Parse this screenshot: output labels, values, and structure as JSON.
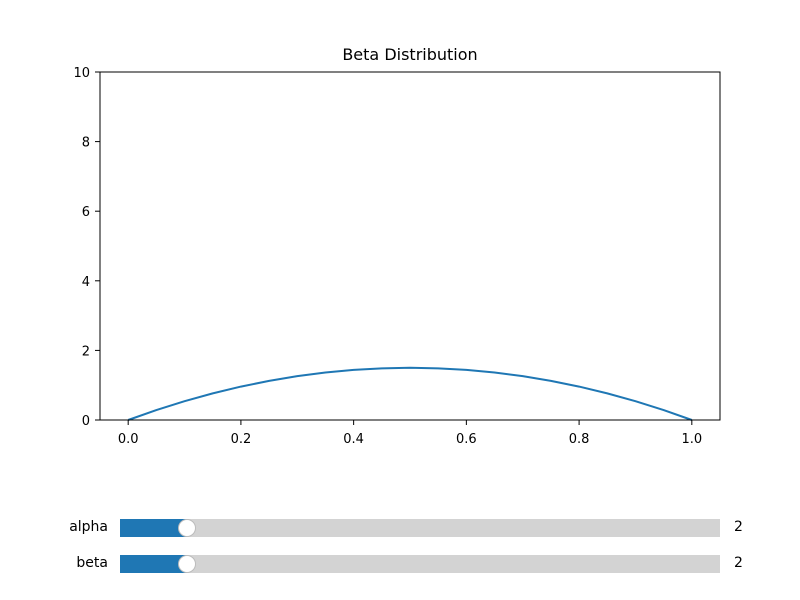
{
  "chart_data": {
    "type": "line",
    "title": "Beta Distribution",
    "xlabel": "",
    "ylabel": "",
    "xlim": [
      -0.05,
      1.05
    ],
    "ylim": [
      0,
      10
    ],
    "xticks": [
      "0.0",
      "0.2",
      "0.4",
      "0.6",
      "0.8",
      "1.0"
    ],
    "yticks": [
      "0",
      "2",
      "4",
      "6",
      "8",
      "10"
    ],
    "grid": false,
    "series": [
      {
        "color": "#1f77b4",
        "x": [
          0.0,
          0.05,
          0.1,
          0.15,
          0.2,
          0.25,
          0.3,
          0.35,
          0.4,
          0.45,
          0.5,
          0.55,
          0.6,
          0.65,
          0.7,
          0.75,
          0.8,
          0.85,
          0.9,
          0.95,
          1.0
        ],
        "y": [
          0.0,
          0.285,
          0.54,
          0.765,
          0.96,
          1.125,
          1.26,
          1.365,
          1.44,
          1.485,
          1.5,
          1.485,
          1.44,
          1.365,
          1.26,
          1.125,
          0.96,
          0.765,
          0.54,
          0.285,
          0.0
        ]
      }
    ]
  },
  "sliders": [
    {
      "label": "alpha",
      "value": "2",
      "fraction": 0.111
    },
    {
      "label": "beta",
      "value": "2",
      "fraction": 0.111
    }
  ],
  "colors": {
    "fill": "#1f77b4",
    "track": "#d3d3d3"
  }
}
